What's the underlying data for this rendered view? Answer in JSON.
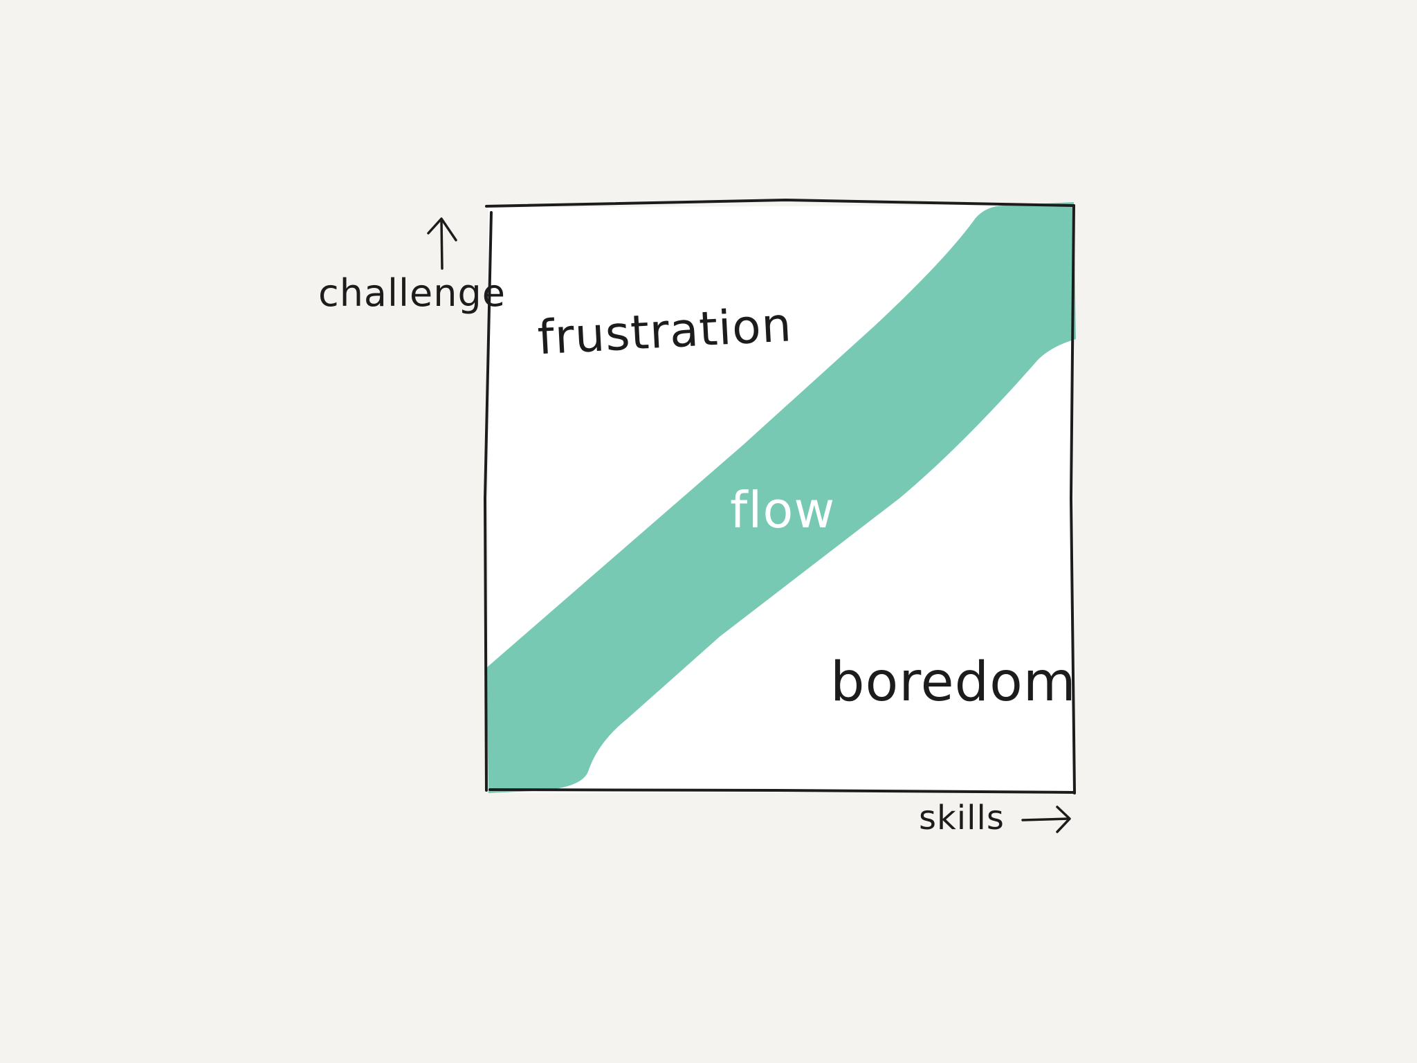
{
  "colors": {
    "background": "#f4f3ef",
    "paper": "#ffffff",
    "ink": "#1c1c1c",
    "flow_band": "#77c9b3",
    "flow_text": "#ffffff"
  },
  "diagram": {
    "y_axis_label": "challenge",
    "x_axis_label": "skills",
    "regions": {
      "frustration": "frustration",
      "flow": "flow",
      "boredom": "boredom"
    }
  },
  "icons": {
    "y_axis_arrow": "arrow-up-icon",
    "x_axis_arrow": "arrow-right-icon"
  }
}
